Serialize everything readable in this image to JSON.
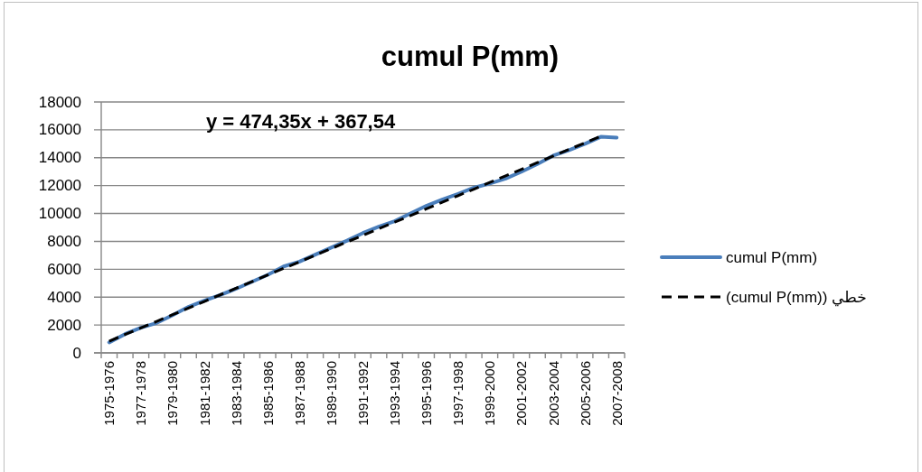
{
  "chart_data": {
    "type": "line",
    "title": "cumul P(mm)",
    "annotations": [
      "y = 474,35x + 367,54"
    ],
    "categories": [
      "1975-1976",
      null,
      "1977-1978",
      null,
      "1979-1980",
      null,
      "1981-1982",
      null,
      "1983-1984",
      null,
      "1985-1986",
      null,
      "1987-1988",
      null,
      "1989-1990",
      null,
      "1991-1992",
      null,
      "1993-1994",
      null,
      "1995-1996",
      null,
      "1997-1998",
      null,
      "1999-2000",
      null,
      "2001-2002",
      null,
      "2003-2004",
      null,
      "2005-2006",
      null,
      "2007-2008"
    ],
    "series": [
      {
        "name": "cumul P(mm)",
        "color": "#4a7ebb",
        "line_style": "solid",
        "values": [
          750,
          1350,
          1800,
          2150,
          2700,
          3300,
          3750,
          4150,
          4600,
          5100,
          5600,
          6200,
          6550,
          7050,
          7550,
          8050,
          8600,
          9050,
          9450,
          10000,
          10550,
          11000,
          11400,
          11850,
          12150,
          12500,
          13000,
          13550,
          14150,
          14550,
          15000,
          15500,
          15450
        ]
      },
      {
        "name": "خطي (cumul P(mm))",
        "color": "#000000",
        "line_style": "dashed",
        "values": [
          840,
          1320,
          1790,
          2260,
          2740,
          3210,
          3690,
          4160,
          4640,
          5110,
          5590,
          6060,
          6530,
          7010,
          7480,
          7960,
          8430,
          8910,
          9380,
          9850,
          10330,
          10800,
          11280,
          11750,
          12230,
          12700,
          13170,
          13650,
          14120,
          14600,
          15070,
          15550,
          null
        ]
      }
    ],
    "ylim": [
      0,
      18000
    ],
    "yticks": [
      0,
      2000,
      4000,
      6000,
      8000,
      10000,
      12000,
      14000,
      16000,
      18000
    ],
    "grid": "y",
    "legend": "right",
    "marker": "none"
  }
}
